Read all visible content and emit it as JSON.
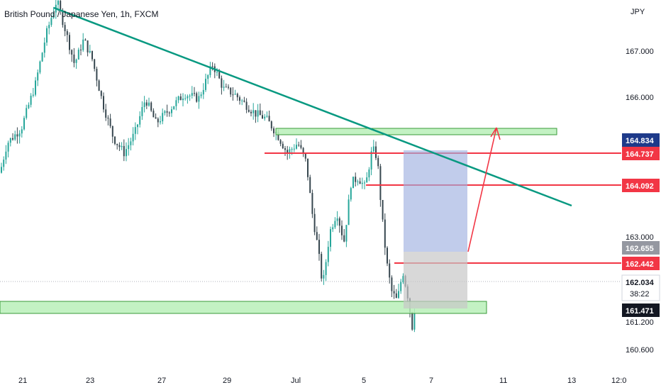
{
  "header": {
    "title": "British Pound / Japanese Yen, 1h, FXCM"
  },
  "axis": {
    "currency": "JPY",
    "price_ticks": [
      "167.000",
      "166.000",
      "163.000",
      "161.200",
      "160.600"
    ],
    "date_ticks": [
      "21",
      "23",
      "27",
      "29",
      "Jul",
      "5",
      "7",
      "11",
      "13",
      "12:0"
    ]
  },
  "price_tags": [
    {
      "id": "tag-164834",
      "label": "164.834",
      "bg": "#1e3a8a"
    },
    {
      "id": "tag-164737",
      "label": "164.737",
      "bg": "#f23645"
    },
    {
      "id": "tag-164092",
      "label": "164.092",
      "bg": "#f23645"
    },
    {
      "id": "tag-162655",
      "label": "162.655",
      "bg": "#9598a1"
    },
    {
      "id": "tag-162442",
      "label": "162.442",
      "bg": "#f23645"
    },
    {
      "id": "tag-current",
      "label": "162.034",
      "bg": "#ffffff",
      "countdown": "38:22"
    },
    {
      "id": "tag-161471",
      "label": "161.471",
      "bg": "#131722"
    }
  ],
  "colors": {
    "up": "#26a69a",
    "down": "#37474f",
    "trendline": "#089981",
    "zone_fill": "#b9f0b9",
    "zone_stroke": "#3a9a3a",
    "level_line": "#f23645",
    "target_box": "#9fb0e0",
    "stop_box": "#c8c8c8",
    "arrow": "#f23645"
  },
  "chart_data": {
    "type": "candlestick",
    "symbol": "GBPJPY",
    "interval": "1h",
    "yrange": [
      160.4,
      167.9
    ],
    "hlines": [
      164.737,
      164.092,
      162.442
    ],
    "price_path": [
      [
        0,
        164.4
      ],
      [
        10,
        165.0
      ],
      [
        30,
        165.3
      ],
      [
        50,
        166.2
      ],
      [
        65,
        167.2
      ],
      [
        80,
        167.9
      ],
      [
        92,
        167.3
      ],
      [
        105,
        166.6
      ],
      [
        118,
        167.1
      ],
      [
        130,
        166.7
      ],
      [
        145,
        165.8
      ],
      [
        160,
        165.1
      ],
      [
        175,
        164.8
      ],
      [
        190,
        165.2
      ],
      [
        205,
        165.9
      ],
      [
        220,
        165.4
      ],
      [
        240,
        165.7
      ],
      [
        260,
        166.0
      ],
      [
        280,
        165.9
      ],
      [
        300,
        166.6
      ],
      [
        315,
        166.1
      ],
      [
        330,
        166.0
      ],
      [
        345,
        165.8
      ],
      [
        360,
        165.6
      ],
      [
        375,
        165.5
      ],
      [
        390,
        165.2
      ],
      [
        405,
        164.8
      ],
      [
        420,
        165.0
      ],
      [
        432,
        164.6
      ],
      [
        440,
        163.6
      ],
      [
        448,
        162.9
      ],
      [
        455,
        162.1
      ],
      [
        465,
        163.2
      ],
      [
        475,
        163.6
      ],
      [
        485,
        163.0
      ],
      [
        495,
        164.2
      ],
      [
        505,
        164.3
      ],
      [
        515,
        164.1
      ],
      [
        525,
        164.9
      ],
      [
        532,
        164.7
      ],
      [
        538,
        163.6
      ],
      [
        545,
        162.6
      ],
      [
        552,
        162.0
      ],
      [
        560,
        161.8
      ],
      [
        568,
        162.4
      ],
      [
        575,
        161.9
      ],
      [
        582,
        161.2
      ],
      [
        587,
        162.1
      ]
    ]
  }
}
